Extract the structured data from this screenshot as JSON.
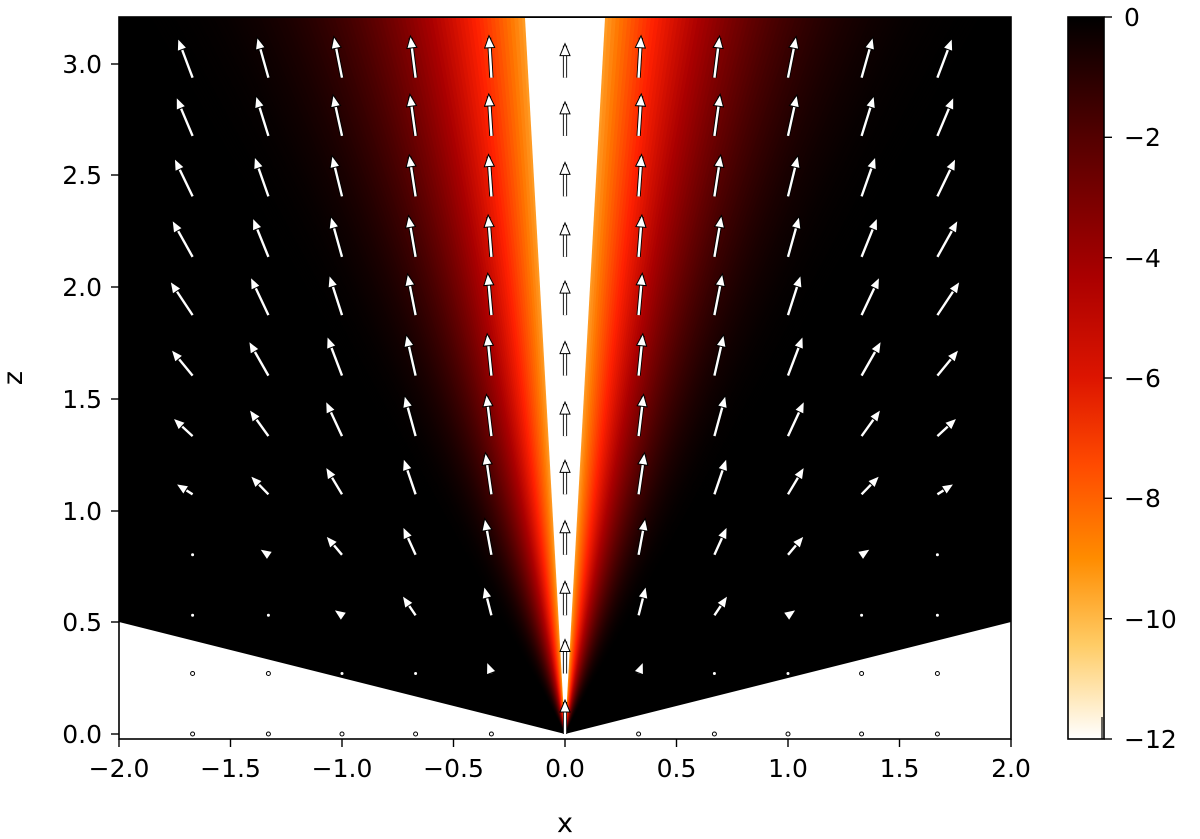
{
  "chart_data": {
    "type": "heatmap",
    "title": "",
    "xlabel": "x",
    "ylabel": "z",
    "xlim": [
      -2.0,
      2.0
    ],
    "ylim": [
      -0.05,
      3.22
    ],
    "x_ticks": [
      "−2.0",
      "−1.5",
      "−1.0",
      "−0.5",
      "0.0",
      "0.5",
      "1.0",
      "1.5",
      "2.0"
    ],
    "y_ticks": [
      "0.0",
      "0.5",
      "1.0",
      "1.5",
      "2.0",
      "2.5",
      "3.0"
    ],
    "colorbar": {
      "range": [
        -12,
        0
      ],
      "ticks": [
        "0",
        "−2",
        "−4",
        "−6",
        "−8",
        "−10",
        "−12"
      ],
      "colormap": "gist_heat",
      "colors": [
        "#000000",
        "#550000",
        "#aa0000",
        "#ff2000",
        "#ff7700",
        "#ffcc55",
        "#ffffff"
      ]
    },
    "masked_region": "z below 0.5*|x| (cone) shown white",
    "quiver": {
      "arrow_color": "#ffffff",
      "outline_color": "#000000",
      "x_positions": [
        -1.67,
        -1.33,
        -1.0,
        -0.67,
        -0.33,
        0.0,
        0.33,
        0.67,
        1.0,
        1.33,
        1.67
      ],
      "z_positions": [
        0.0,
        0.27,
        0.53,
        0.8,
        1.07,
        1.33,
        1.6,
        1.87,
        2.13,
        2.4,
        2.67,
        2.93,
        3.2
      ],
      "direction": "outward and upward from the axis x=0, steepening with height; vertical along x=0"
    },
    "grid": false
  }
}
